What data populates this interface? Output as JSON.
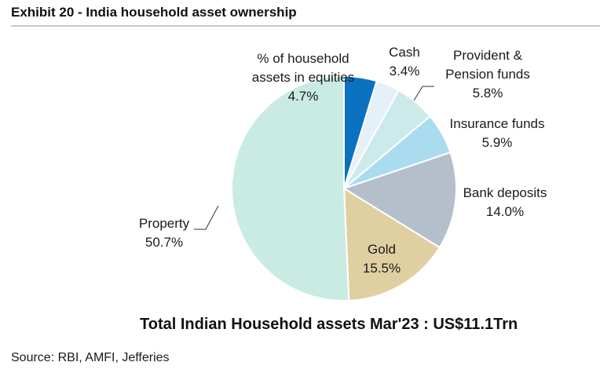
{
  "title": "Exhibit 20 - India household asset ownership",
  "chart_data": {
    "type": "pie",
    "slices": [
      {
        "label_lines": [
          "% of household",
          "assets in equities"
        ],
        "value_label": "4.7%",
        "value": 4.7,
        "color": "#0a71c0"
      },
      {
        "label_lines": [
          "Cash"
        ],
        "value_label": "3.4%",
        "value": 3.4,
        "color": "#e4f1f8"
      },
      {
        "label_lines": [
          "Provident &",
          "Pension funds"
        ],
        "value_label": "5.8%",
        "value": 5.8,
        "color": "#cdeaeb"
      },
      {
        "label_lines": [
          "Insurance funds"
        ],
        "value_label": "5.9%",
        "value": 5.9,
        "color": "#a8dcee"
      },
      {
        "label_lines": [
          "Bank deposits"
        ],
        "value_label": "14.0%",
        "value": 14.0,
        "color": "#b5bfcb"
      },
      {
        "label_lines": [
          "Gold"
        ],
        "value_label": "15.5%",
        "value": 15.5,
        "color": "#e0cfa1"
      },
      {
        "label_lines": [
          "Property"
        ],
        "value_label": "50.7%",
        "value": 50.7,
        "color": "#c9ebe3"
      }
    ]
  },
  "footer": "Total Indian Household assets Mar'23 : US$11.1Trn",
  "source": "Source: RBI, AMFI, Jefferies"
}
